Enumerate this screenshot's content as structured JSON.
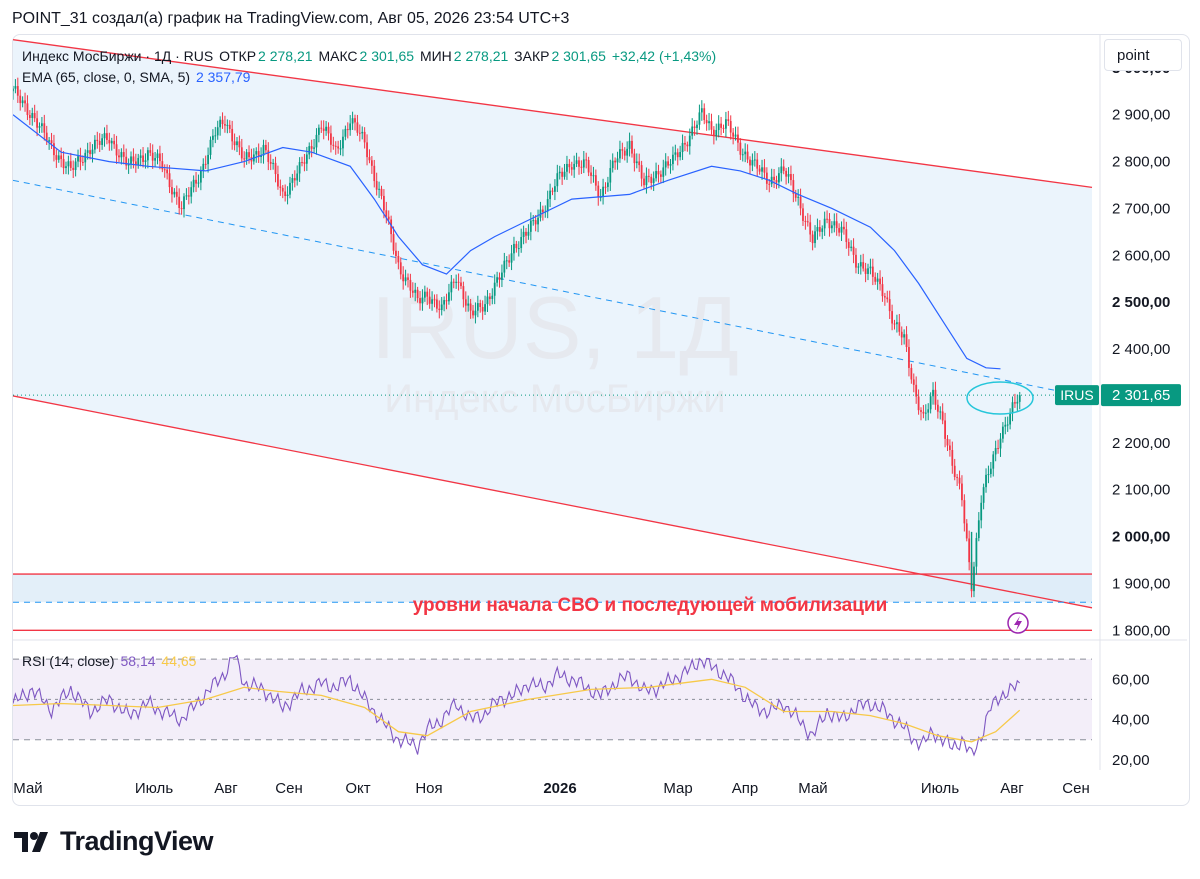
{
  "header": {
    "title": "POINT_31 создал(а) график на TradingView.com, Авг 05, 2026 23:54 UTC+3"
  },
  "legend": {
    "symbol": "Индекс МосБиржи · 1Д · RUS",
    "open_label": "ОТКР",
    "open_value": "2 278,21",
    "high_label": "МАКС",
    "high_value": "2 301,65",
    "low_label": "МИН",
    "low_value": "2 278,21",
    "close_label": "ЗАКР",
    "close_value": "2 301,65",
    "change": "+32,42 (+1,43%)",
    "ema_label": "EMA (65, close, 0, SMA, 5)",
    "ema_value": "2 357,79",
    "rsi_label": "RSI (14, close)",
    "rsi_value": "58,14",
    "rsi_ma_value": "44,65"
  },
  "scale_button": "point",
  "watermark": {
    "ticker": "IRUS, 1Д",
    "name": "Индекс МосБиржи"
  },
  "annotation": "уровни начала СВО и последующей мобилизации",
  "last_price": {
    "ticker": "IRUS",
    "value": "2 301,65"
  },
  "brand": "TradingView",
  "colors": {
    "up": "#089981",
    "down": "#f23645",
    "ema": "#2962ff",
    "channel": "#f23645",
    "rsi": "#7e57c2",
    "rsi_ma": "#f7c948",
    "channel_fill": "#e9f3fc",
    "rsi_band_fill": "#f3eef9"
  },
  "chart_data": [
    {
      "type": "candlestick",
      "title": "Индекс МосБиржи · 1Д · RUS",
      "x_ticks": [
        "Май",
        "Июль",
        "Авг",
        "Сен",
        "Окт",
        "Ноя",
        "2026",
        "Мар",
        "Апр",
        "Май",
        "Июль",
        "Авг",
        "Сен"
      ],
      "y_ticks": [
        "3 000,00",
        "2 900,00",
        "2 800,00",
        "2 700,00",
        "2 600,00",
        "2 500,00",
        "2 400,00",
        "2 300,00",
        "2 200,00",
        "2 100,00",
        "2 000,00",
        "1 900,00",
        "1 800,00"
      ],
      "ylim": [
        1790,
        3070
      ],
      "close_path": [
        [
          0,
          2950
        ],
        [
          8,
          2900
        ],
        [
          16,
          2830
        ],
        [
          24,
          2780
        ],
        [
          32,
          2830
        ],
        [
          40,
          2850
        ],
        [
          48,
          2790
        ],
        [
          56,
          2820
        ],
        [
          62,
          2790
        ],
        [
          70,
          2700
        ],
        [
          78,
          2780
        ],
        [
          84,
          2860
        ],
        [
          88,
          2890
        ],
        [
          96,
          2800
        ],
        [
          104,
          2830
        ],
        [
          112,
          2730
        ],
        [
          120,
          2790
        ],
        [
          128,
          2880
        ],
        [
          134,
          2820
        ],
        [
          140,
          2890
        ],
        [
          146,
          2840
        ],
        [
          154,
          2700
        ],
        [
          160,
          2580
        ],
        [
          168,
          2500
        ],
        [
          172,
          2520
        ],
        [
          178,
          2480
        ],
        [
          184,
          2560
        ],
        [
          190,
          2470
        ],
        [
          196,
          2500
        ],
        [
          202,
          2550
        ],
        [
          208,
          2620
        ],
        [
          214,
          2650
        ],
        [
          220,
          2700
        ],
        [
          226,
          2760
        ],
        [
          232,
          2800
        ],
        [
          238,
          2790
        ],
        [
          244,
          2730
        ],
        [
          250,
          2800
        ],
        [
          256,
          2840
        ],
        [
          262,
          2750
        ],
        [
          268,
          2780
        ],
        [
          274,
          2800
        ],
        [
          280,
          2850
        ],
        [
          286,
          2900
        ],
        [
          290,
          2870
        ],
        [
          296,
          2880
        ],
        [
          302,
          2830
        ],
        [
          308,
          2790
        ],
        [
          314,
          2760
        ],
        [
          320,
          2780
        ],
        [
          326,
          2720
        ],
        [
          332,
          2630
        ],
        [
          338,
          2680
        ],
        [
          344,
          2650
        ],
        [
          350,
          2590
        ],
        [
          356,
          2560
        ],
        [
          362,
          2520
        ],
        [
          366,
          2450
        ],
        [
          370,
          2420
        ],
        [
          374,
          2320
        ],
        [
          378,
          2250
        ],
        [
          382,
          2300
        ],
        [
          386,
          2250
        ],
        [
          390,
          2150
        ],
        [
          394,
          2080
        ],
        [
          398,
          1900
        ],
        [
          402,
          2080
        ],
        [
          406,
          2150
        ],
        [
          410,
          2220
        ],
        [
          414,
          2260
        ],
        [
          418,
          2301.65
        ]
      ],
      "ema": {
        "name": "EMA (65, close, 0, SMA, 5)",
        "path": [
          [
            0,
            2900
          ],
          [
            20,
            2820
          ],
          [
            40,
            2800
          ],
          [
            56,
            2790
          ],
          [
            80,
            2780
          ],
          [
            96,
            2800
          ],
          [
            112,
            2830
          ],
          [
            124,
            2820
          ],
          [
            140,
            2790
          ],
          [
            150,
            2720
          ],
          [
            160,
            2640
          ],
          [
            170,
            2580
          ],
          [
            180,
            2560
          ],
          [
            190,
            2610
          ],
          [
            200,
            2640
          ],
          [
            212,
            2670
          ],
          [
            232,
            2720
          ],
          [
            256,
            2730
          ],
          [
            272,
            2760
          ],
          [
            290,
            2790
          ],
          [
            302,
            2780
          ],
          [
            314,
            2760
          ],
          [
            326,
            2730
          ],
          [
            340,
            2700
          ],
          [
            356,
            2660
          ],
          [
            366,
            2610
          ],
          [
            376,
            2540
          ],
          [
            386,
            2460
          ],
          [
            396,
            2380
          ],
          [
            404,
            2360
          ],
          [
            410,
            2357.79
          ]
        ]
      },
      "channel_upper": [
        [
          0,
          3060
        ],
        [
          448,
          2745
        ]
      ],
      "channel_lower": [
        [
          0,
          2300
        ],
        [
          448,
          1848
        ]
      ],
      "mid_dashed": [
        [
          0,
          2760
        ],
        [
          448,
          2296
        ]
      ],
      "horizontal_levels": [
        1920,
        1800
      ],
      "dashed_level": 1860,
      "highlight_zone": [
        1860,
        1920
      ]
    },
    {
      "type": "line",
      "title": "RSI (14, close)",
      "y_ticks": [
        "60,00",
        "40,00",
        "20,00"
      ],
      "ylim": [
        15,
        77
      ],
      "band": [
        30,
        70
      ],
      "series": [
        {
          "name": "RSI",
          "path": [
            [
              0,
              48
            ],
            [
              8,
              55
            ],
            [
              16,
              45
            ],
            [
              24,
              55
            ],
            [
              32,
              44
            ],
            [
              40,
              50
            ],
            [
              48,
              42
            ],
            [
              56,
              48
            ],
            [
              62,
              44
            ],
            [
              70,
              40
            ],
            [
              78,
              50
            ],
            [
              84,
              58
            ],
            [
              88,
              63
            ],
            [
              92,
              72
            ],
            [
              96,
              58
            ],
            [
              104,
              55
            ],
            [
              112,
              46
            ],
            [
              120,
              54
            ],
            [
              128,
              58
            ],
            [
              134,
              56
            ],
            [
              140,
              60
            ],
            [
              146,
              50
            ],
            [
              154,
              38
            ],
            [
              160,
              30
            ],
            [
              168,
              27
            ],
            [
              172,
              35
            ],
            [
              178,
              40
            ],
            [
              184,
              48
            ],
            [
              190,
              40
            ],
            [
              196,
              43
            ],
            [
              202,
              50
            ],
            [
              208,
              52
            ],
            [
              214,
              58
            ],
            [
              220,
              56
            ],
            [
              226,
              62
            ],
            [
              232,
              60
            ],
            [
              238,
              56
            ],
            [
              244,
              52
            ],
            [
              250,
              58
            ],
            [
              256,
              62
            ],
            [
              262,
              54
            ],
            [
              268,
              56
            ],
            [
              274,
              60
            ],
            [
              280,
              64
            ],
            [
              286,
              70
            ],
            [
              290,
              66
            ],
            [
              296,
              62
            ],
            [
              302,
              54
            ],
            [
              308,
              46
            ],
            [
              314,
              44
            ],
            [
              320,
              48
            ],
            [
              326,
              40
            ],
            [
              332,
              32
            ],
            [
              338,
              44
            ],
            [
              344,
              40
            ],
            [
              350,
              46
            ],
            [
              356,
              48
            ],
            [
              362,
              44
            ],
            [
              366,
              40
            ],
            [
              370,
              36
            ],
            [
              374,
              30
            ],
            [
              378,
              28
            ],
            [
              382,
              34
            ],
            [
              386,
              30
            ],
            [
              390,
              26
            ],
            [
              394,
              30
            ],
            [
              398,
              22
            ],
            [
              402,
              32
            ],
            [
              406,
              46
            ],
            [
              410,
              52
            ],
            [
              414,
              54
            ],
            [
              418,
              58.14
            ]
          ]
        },
        {
          "name": "MA",
          "path": [
            [
              0,
              47
            ],
            [
              20,
              48
            ],
            [
              40,
              47
            ],
            [
              60,
              46
            ],
            [
              80,
              50
            ],
            [
              96,
              56
            ],
            [
              110,
              54
            ],
            [
              128,
              52
            ],
            [
              146,
              46
            ],
            [
              160,
              34
            ],
            [
              172,
              32
            ],
            [
              190,
              44
            ],
            [
              214,
              50
            ],
            [
              240,
              55
            ],
            [
              264,
              56
            ],
            [
              290,
              60
            ],
            [
              304,
              56
            ],
            [
              320,
              44
            ],
            [
              340,
              44
            ],
            [
              356,
              42
            ],
            [
              370,
              38
            ],
            [
              384,
              32
            ],
            [
              398,
              29
            ],
            [
              408,
              34
            ],
            [
              418,
              44.65
            ]
          ]
        }
      ]
    }
  ]
}
